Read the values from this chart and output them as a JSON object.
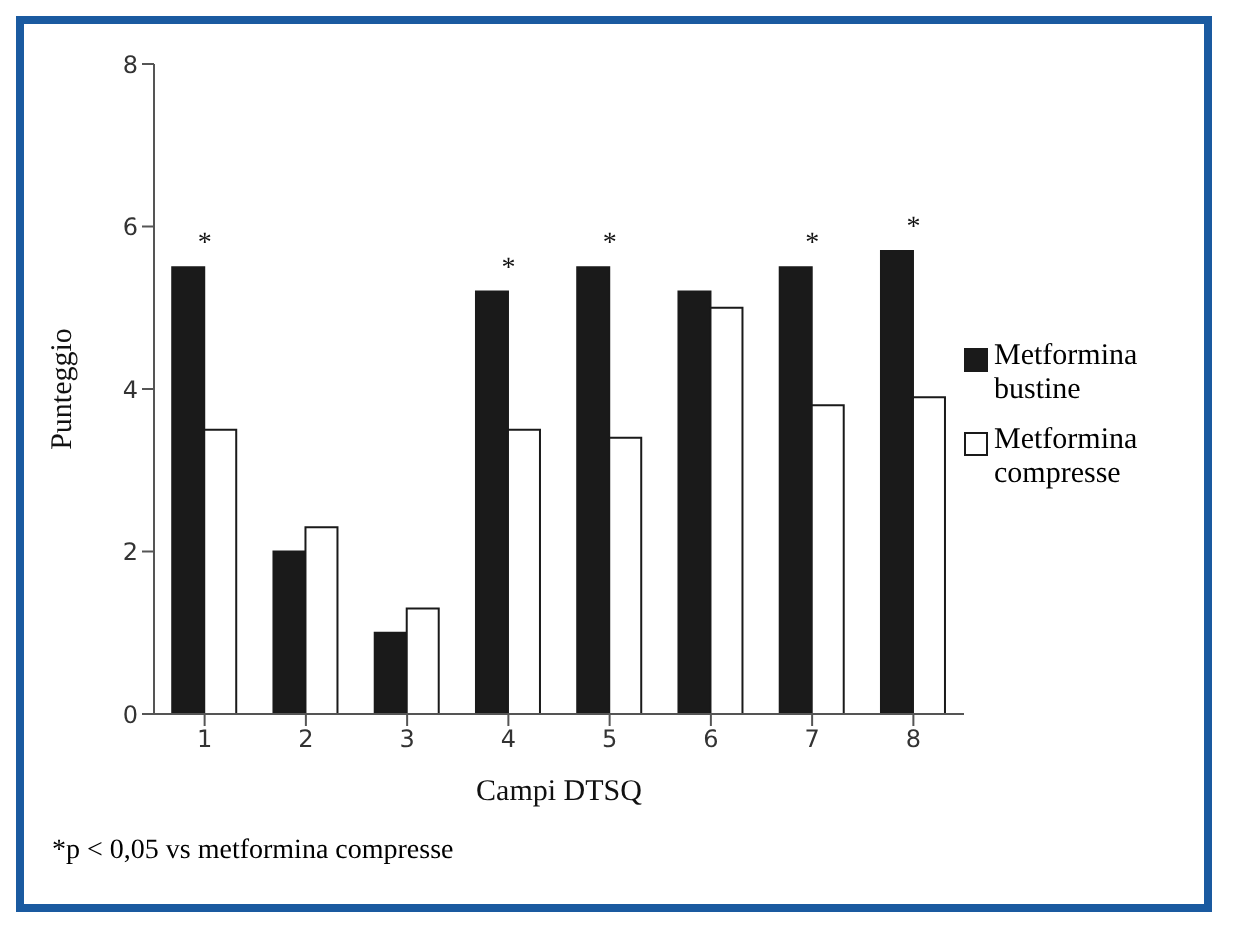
{
  "chart_data": {
    "type": "bar",
    "xlabel": "Campi DTSQ",
    "ylabel": "Punteggio",
    "categories": [
      "1",
      "2",
      "3",
      "4",
      "5",
      "6",
      "7",
      "8"
    ],
    "series": [
      {
        "name": "Metformina bustine",
        "color": "#1a1a1a",
        "values": [
          5.5,
          2.0,
          1.0,
          5.2,
          5.5,
          5.2,
          5.5,
          5.7
        ]
      },
      {
        "name": "Metformina compresse",
        "color": "#ffffff",
        "values": [
          3.5,
          2.3,
          1.3,
          3.5,
          3.4,
          5.0,
          3.8,
          3.9
        ]
      }
    ],
    "ylim": [
      0,
      8
    ],
    "yticks": [
      0,
      2,
      4,
      6,
      8
    ],
    "grid": false,
    "legend": "right",
    "annotations": [
      {
        "text": "*",
        "x": "1",
        "y": 5.5
      },
      {
        "text": "*",
        "x": "4",
        "y": 5.2
      },
      {
        "text": "*",
        "x": "5",
        "y": 5.5
      },
      {
        "text": "*",
        "x": "7",
        "y": 5.5
      },
      {
        "text": "*",
        "x": "8",
        "y": 5.7
      },
      "*p < 0,05 vs metformina compresse"
    ]
  }
}
